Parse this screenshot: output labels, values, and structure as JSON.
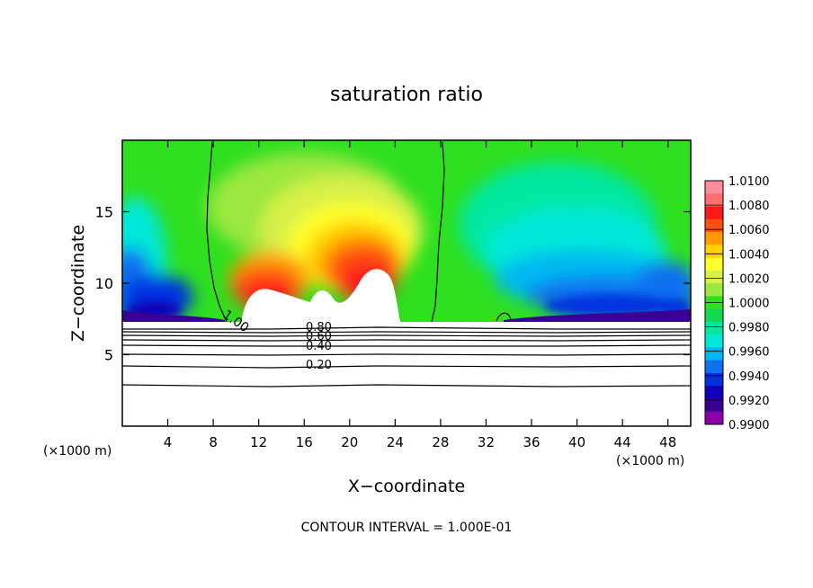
{
  "chart_data": {
    "type": "heatmap",
    "title": "saturation ratio",
    "xlabel": "X−coordinate",
    "ylabel": "Z−coordinate",
    "x_unit_left": "(×1000 m)",
    "x_unit_right": "(×1000 m)",
    "xlim": [
      0,
      50
    ],
    "ylim": [
      0,
      20
    ],
    "x_ticks": [
      4,
      8,
      12,
      16,
      20,
      24,
      28,
      32,
      36,
      40,
      44,
      48
    ],
    "y_ticks": [
      5,
      10,
      15
    ],
    "colorbar": {
      "levels": [
        "1.0100",
        "1.0080",
        "1.0060",
        "1.0040",
        "1.0020",
        "1.0000",
        "0.9980",
        "0.9960",
        "0.9940",
        "0.9920",
        "0.9900"
      ],
      "colors": [
        "#ff8c9a",
        "#ff6f6f",
        "#ff1a1a",
        "#ff5010",
        "#ff9a00",
        "#ffd200",
        "#ffff2a",
        "#d8f04a",
        "#9be840",
        "#2ee020",
        "#10d850",
        "#00e8a0",
        "#00e8d8",
        "#00b8f0",
        "#1070f0",
        "#0030e0",
        "#1000b8",
        "#3a0090",
        "#8a00a8"
      ]
    },
    "contour_labels": [
      "1.00",
      "0.80",
      "0.60",
      "0.40",
      "0.20"
    ],
    "contour_interval": "CONTOUR INTERVAL = 1.000E-01",
    "grid": false
  }
}
